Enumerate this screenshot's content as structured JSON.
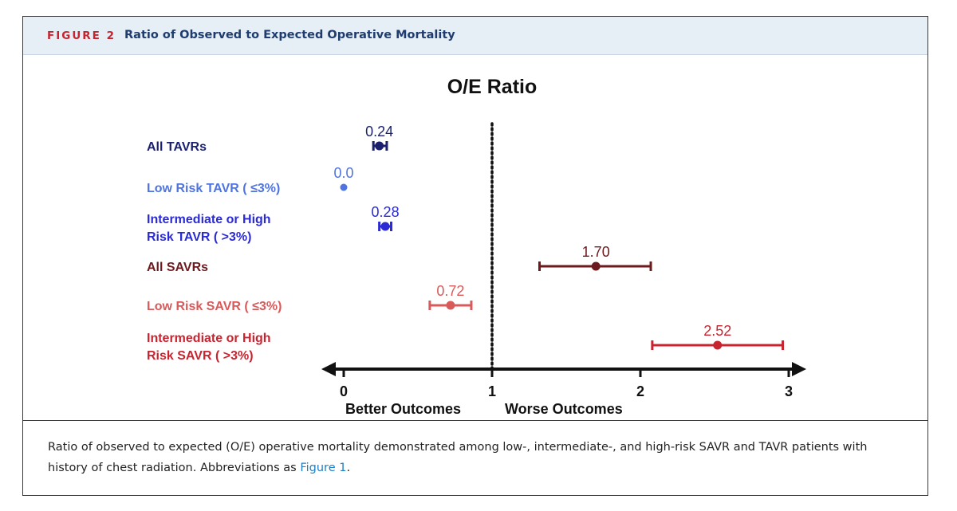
{
  "figure": {
    "label": "FIGURE 2",
    "title": "Ratio of Observed to Expected Operative Mortality"
  },
  "caption": {
    "text": "Ratio of observed to expected (O/E) operative mortality demonstrated among low-, intermediate-, and high-risk SAVR and TAVR patients with history of chest radiation. Abbreviations as ",
    "link": "Figure 1",
    "end": "."
  },
  "chart_data": {
    "type": "forest",
    "title": "O/E Ratio",
    "xlim": [
      0,
      3
    ],
    "x_ticks": [
      "0",
      "1",
      "2",
      "3"
    ],
    "x_tick_values": [
      0,
      1,
      2,
      3
    ],
    "reference_line": 1,
    "bottom_labels": {
      "left": "Better Outcomes",
      "right": "Worse Outcomes"
    },
    "rows": [
      {
        "label": [
          "All TAVRs"
        ],
        "value": 0.24,
        "value_label": "0.24",
        "ci": [
          0.2,
          0.29
        ],
        "color": "#1a1f6e"
      },
      {
        "label": [
          "Low Risk TAVR ( ≤3%)"
        ],
        "value": 0.0,
        "value_label": "0.0",
        "ci": null,
        "color": "#4f74e0"
      },
      {
        "label": [
          "Intermediate or High",
          "Risk TAVR ( >3%)"
        ],
        "value": 0.28,
        "value_label": "0.28",
        "ci": [
          0.24,
          0.32
        ],
        "color": "#2b2bd6"
      },
      {
        "label": [
          "All SAVRs"
        ],
        "value": 1.7,
        "value_label": "1.70",
        "ci": [
          1.32,
          2.07
        ],
        "color": "#6b1a1e"
      },
      {
        "label": [
          "Low Risk SAVR ( ≤3%)"
        ],
        "value": 0.72,
        "value_label": "0.72",
        "ci": [
          0.58,
          0.86
        ],
        "color": "#d85a5a"
      },
      {
        "label": [
          "Intermediate or High",
          "Risk SAVR ( >3%)"
        ],
        "value": 2.52,
        "value_label": "2.52",
        "ci": [
          2.08,
          2.96
        ],
        "color": "#c8242f"
      }
    ]
  }
}
